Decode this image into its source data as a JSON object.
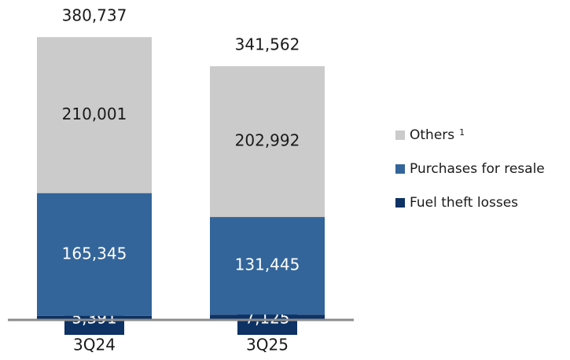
{
  "chart_data": {
    "type": "stacked_bar",
    "categories": [
      "3Q24",
      "3Q25"
    ],
    "series": [
      {
        "name": "Fuel theft losses",
        "color": "#0d3263",
        "values": [
          5391,
          7125
        ],
        "value_labels": [
          "5,391",
          "7,125"
        ]
      },
      {
        "name": "Purchases for resale",
        "color": "#33659a",
        "values": [
          165345,
          131445
        ],
        "value_labels": [
          "165,345",
          "131,445"
        ]
      },
      {
        "name": "Others",
        "footnote": "1",
        "color": "#cbcbcb",
        "values": [
          210001,
          202992
        ],
        "value_labels": [
          "210,001",
          "202,992"
        ]
      }
    ],
    "totals": [
      380737,
      341562
    ],
    "totals_labels": [
      "380,737",
      "341,562"
    ],
    "ylim": [
      0,
      400000
    ],
    "legend": "right"
  }
}
